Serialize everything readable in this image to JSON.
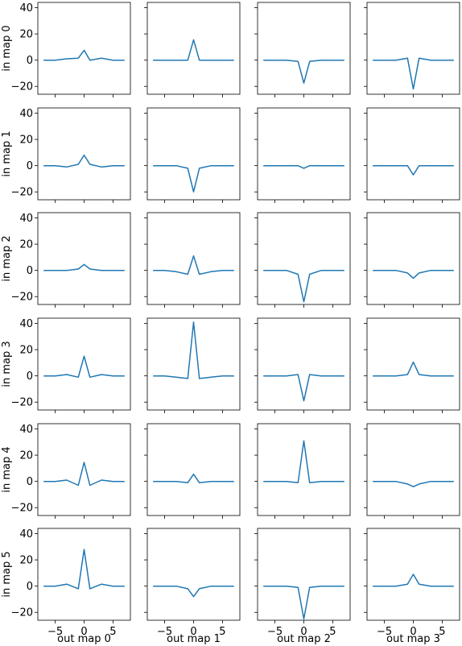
{
  "figure": {
    "row_labels": [
      "in map 0",
      "in map 1",
      "in map 2",
      "in map 3",
      "in map 4",
      "in map 5"
    ],
    "col_labels": [
      "out map 0",
      "out map 1",
      "out map 2",
      "out map 3"
    ],
    "line_color": "#1f77b4"
  },
  "chart_data": {
    "type": "line",
    "layout": "grid 6 rows x 4 columns, shared axes",
    "x": [
      -7,
      -5,
      -3,
      -1,
      0,
      1,
      3,
      5,
      7
    ],
    "xlim": [
      -8,
      8
    ],
    "ylim": [
      -26,
      44
    ],
    "xticks": [
      -5,
      0,
      5
    ],
    "yticks": [
      -20,
      0,
      20,
      40
    ],
    "xtick_labels": [
      "−5",
      "0",
      "5"
    ],
    "ytick_labels": [
      "−20",
      "0",
      "20",
      "40"
    ],
    "grid": false,
    "panels": [
      [
        [
          0,
          0,
          1,
          1.5,
          7.5,
          0,
          1.5,
          0,
          0
        ],
        [
          0,
          0,
          0,
          0,
          15.5,
          0,
          0,
          0,
          0
        ],
        [
          0,
          0,
          0,
          -1,
          -17.5,
          -1,
          0,
          0,
          0
        ],
        [
          0,
          0,
          0,
          1.5,
          -22,
          1.5,
          0,
          0,
          0
        ]
      ],
      [
        [
          0,
          0,
          -1,
          1,
          8,
          1,
          -1,
          0,
          0
        ],
        [
          0,
          0,
          0,
          -2,
          -20,
          -2,
          0,
          0,
          0
        ],
        [
          0,
          0,
          0,
          0,
          -2,
          0,
          0,
          0,
          0
        ],
        [
          0,
          0,
          0,
          0,
          -7,
          0,
          0,
          0,
          0
        ]
      ],
      [
        [
          0,
          0,
          0,
          1,
          4.5,
          1,
          0,
          0,
          0
        ],
        [
          0,
          0,
          -1,
          -3,
          11,
          -3,
          -1,
          0,
          0
        ],
        [
          0,
          0,
          0,
          -3,
          -24,
          -3,
          0,
          0,
          0
        ],
        [
          0,
          0,
          0,
          -2,
          -6,
          -2,
          0,
          0,
          0
        ]
      ],
      [
        [
          0,
          0,
          1,
          -1,
          15,
          -1,
          1,
          0,
          0
        ],
        [
          0,
          0,
          -1,
          -2,
          41,
          -2,
          -1,
          0,
          0
        ],
        [
          0,
          0,
          0,
          1,
          -19,
          1,
          0,
          0,
          0
        ],
        [
          0,
          0,
          0,
          1,
          10.5,
          1,
          0,
          0,
          0
        ]
      ],
      [
        [
          0,
          0,
          1,
          -3,
          14.5,
          -3,
          1,
          0,
          0
        ],
        [
          0,
          0,
          0,
          -1,
          5.5,
          -1,
          0,
          0,
          0
        ],
        [
          0,
          0,
          0,
          -1,
          31,
          -1,
          0,
          0,
          0
        ],
        [
          0,
          0,
          0,
          -2,
          -4,
          -2,
          0,
          0,
          0
        ]
      ],
      [
        [
          0,
          0,
          1.5,
          -2,
          28,
          -2,
          1.5,
          0,
          0
        ],
        [
          0,
          0,
          0,
          -2,
          -8,
          -2,
          0,
          0,
          0
        ],
        [
          0,
          0,
          0,
          -1,
          -25,
          -1,
          0,
          0,
          0
        ],
        [
          0,
          0,
          0,
          1.5,
          9,
          1.5,
          0,
          0,
          0
        ]
      ]
    ]
  }
}
